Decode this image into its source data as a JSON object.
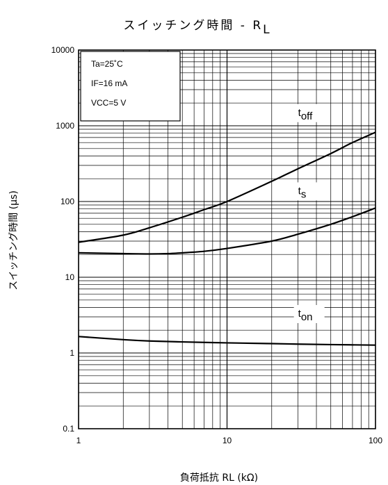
{
  "chart_data": {
    "type": "line",
    "title_main": "スイッチング時間 - R",
    "title_sub": "L",
    "xlabel_main": "負荷抵抗 RL (kΩ)",
    "ylabel_main": "スイッチング時間 (μs)",
    "x_scale": "log",
    "y_scale": "log",
    "xlim": [
      1,
      100
    ],
    "ylim": [
      0.1,
      10000
    ],
    "x_ticks": [
      "1",
      "10",
      "100"
    ],
    "y_ticks": [
      "0.1",
      "1",
      "10",
      "100",
      "1000",
      "10000"
    ],
    "grid": true,
    "conditions": [
      "Ta=25˚C",
      "IF=16 mA",
      "VCC=5 V"
    ],
    "series": [
      {
        "name_main": "t",
        "name_sub": "off",
        "x": [
          1,
          2,
          3,
          5,
          7,
          10,
          20,
          30,
          50,
          70,
          100
        ],
        "y": [
          29,
          36,
          45,
          62,
          78,
          100,
          185,
          270,
          430,
          600,
          820
        ],
        "label_at": [
          35,
          1350
        ]
      },
      {
        "name_main": "t",
        "name_sub": "s",
        "x": [
          1,
          2,
          3,
          4,
          5,
          7,
          10,
          20,
          30,
          50,
          70,
          100
        ],
        "y": [
          21,
          20.5,
          20.3,
          20.5,
          21,
          22,
          24,
          30,
          37,
          50,
          63,
          82
        ],
        "label_at": [
          35,
          125
        ]
      },
      {
        "name_main": "t",
        "name_sub": "on",
        "x": [
          1,
          2,
          3,
          5,
          10,
          20,
          30,
          50,
          100
        ],
        "y": [
          1.65,
          1.5,
          1.44,
          1.4,
          1.36,
          1.33,
          1.31,
          1.29,
          1.27
        ],
        "label_at": [
          35,
          3.0
        ]
      }
    ],
    "line_color": "#000000",
    "grid_color": "#000000"
  }
}
